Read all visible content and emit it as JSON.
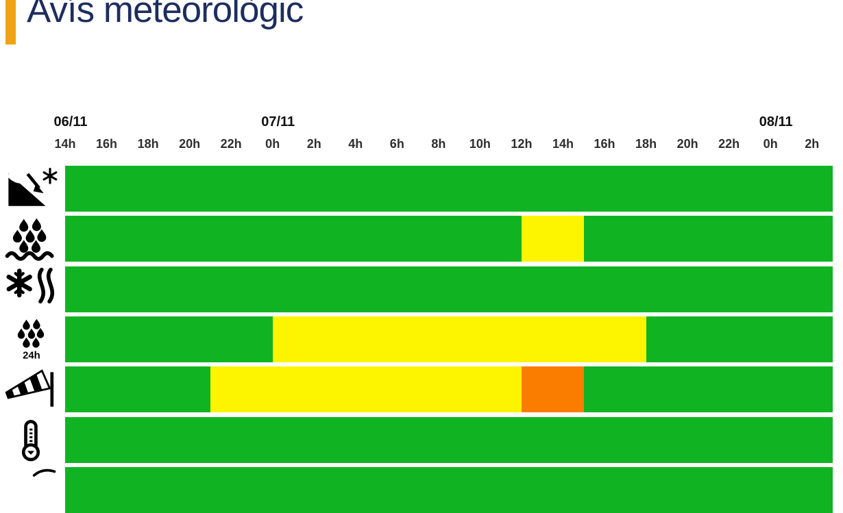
{
  "title": "Avís meteorològic",
  "colors": {
    "accent_bar": "#efa312",
    "title_text": "#1d2d5f",
    "green": "#10b423",
    "yellow": "#fdf400",
    "orange": "#fb7d00",
    "date_label": "#111111",
    "hour_label": "#2e2e2e",
    "background": "#ffffff"
  },
  "timeline": {
    "hours": [
      "14h",
      "16h",
      "18h",
      "20h",
      "22h",
      "0h",
      "2h",
      "4h",
      "6h",
      "8h",
      "10h",
      "12h",
      "14h",
      "16h",
      "18h",
      "20h",
      "22h",
      "0h",
      "2h"
    ],
    "dates": [
      {
        "label": "06/11",
        "tick_index": 0
      },
      {
        "label": "07/11",
        "tick_index": 5
      },
      {
        "label": "08/11",
        "tick_index": 17
      }
    ]
  },
  "chart_data": {
    "type": "heatmap",
    "title": "Avís meteorològic",
    "x_axis": {
      "start": "06/11 14:00",
      "end": "08/11 03:00",
      "total_hours": 37,
      "tick_interval_hours": 2,
      "tick_labels": [
        "14h",
        "16h",
        "18h",
        "20h",
        "22h",
        "0h",
        "2h",
        "4h",
        "6h",
        "8h",
        "10h",
        "12h",
        "14h",
        "16h",
        "18h",
        "20h",
        "22h",
        "0h",
        "2h"
      ]
    },
    "legend_levels": [
      "green",
      "yellow",
      "orange"
    ],
    "rows": [
      {
        "icon": "avalanche",
        "icon_label": "",
        "segments": [
          {
            "from_hour": 0,
            "to_hour": 37,
            "level": "green",
            "start": "06/11 14:00",
            "end": "08/11 03:00"
          }
        ]
      },
      {
        "icon": "rain-intensity",
        "icon_label": "",
        "segments": [
          {
            "from_hour": 0,
            "to_hour": 22,
            "level": "green",
            "start": "06/11 14:00",
            "end": "07/11 12:00"
          },
          {
            "from_hour": 22,
            "to_hour": 25,
            "level": "yellow",
            "start": "07/11 12:00",
            "end": "07/11 15:00"
          },
          {
            "from_hour": 25,
            "to_hour": 37,
            "level": "green",
            "start": "07/11 15:00",
            "end": "08/11 03:00"
          }
        ]
      },
      {
        "icon": "snowfall",
        "icon_label": "",
        "segments": [
          {
            "from_hour": 0,
            "to_hour": 37,
            "level": "green",
            "start": "06/11 14:00",
            "end": "08/11 03:00"
          }
        ]
      },
      {
        "icon": "rain-accumulation-24h",
        "icon_label": "24h",
        "segments": [
          {
            "from_hour": 0,
            "to_hour": 10,
            "level": "green",
            "start": "06/11 14:00",
            "end": "07/11 00:00"
          },
          {
            "from_hour": 10,
            "to_hour": 28,
            "level": "yellow",
            "start": "07/11 00:00",
            "end": "07/11 18:00"
          },
          {
            "from_hour": 28,
            "to_hour": 37,
            "level": "green",
            "start": "07/11 18:00",
            "end": "08/11 03:00"
          }
        ]
      },
      {
        "icon": "wind",
        "icon_label": "",
        "segments": [
          {
            "from_hour": 0,
            "to_hour": 7,
            "level": "green",
            "start": "06/11 14:00",
            "end": "06/11 21:00"
          },
          {
            "from_hour": 7,
            "to_hour": 22,
            "level": "yellow",
            "start": "06/11 21:00",
            "end": "07/11 12:00"
          },
          {
            "from_hour": 22,
            "to_hour": 25,
            "level": "orange",
            "start": "07/11 12:00",
            "end": "07/11 15:00"
          },
          {
            "from_hour": 25,
            "to_hour": 37,
            "level": "green",
            "start": "07/11 15:00",
            "end": "08/11 03:00"
          }
        ]
      },
      {
        "icon": "cold",
        "icon_label": "",
        "segments": [
          {
            "from_hour": 0,
            "to_hour": 37,
            "level": "green",
            "start": "06/11 14:00",
            "end": "08/11 03:00"
          }
        ]
      },
      {
        "icon": "partially-visible-row",
        "icon_label": "",
        "segments": [
          {
            "from_hour": 0,
            "to_hour": 37,
            "level": "green",
            "start": "06/11 14:00",
            "end": "08/11 03:00"
          }
        ]
      }
    ]
  },
  "layout_hints": {
    "grid": "off",
    "legend_position": "none",
    "row_gap_color": "#ffffff"
  }
}
